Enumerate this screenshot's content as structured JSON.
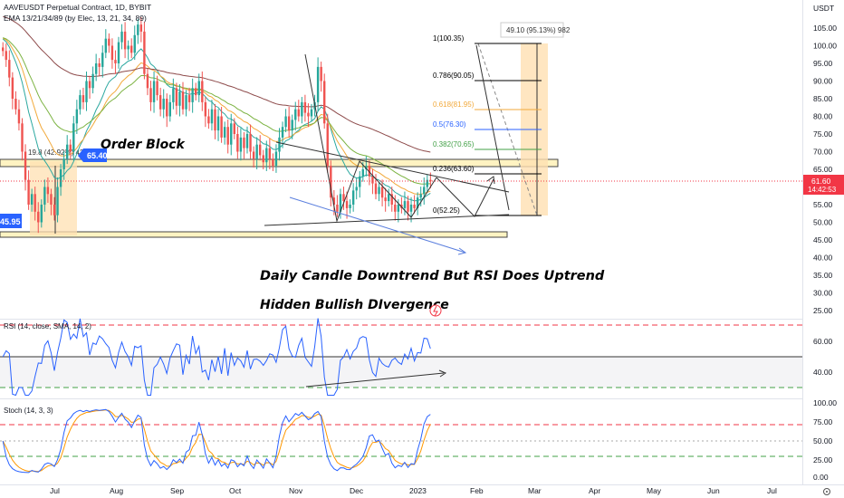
{
  "header": {
    "symbol_line": "AAVEUSDT Perpetual Contract, 1D, BYBIT",
    "ema_line": "EMA 13/21/34/89 (by Elec, 13, 21, 34, 89)"
  },
  "price_axis": {
    "unit": "USDT",
    "ticks": [
      "105.00",
      "100.00",
      "95.00",
      "90.00",
      "85.00",
      "80.00",
      "75.00",
      "70.00",
      "65.00",
      "60.00",
      "55.00",
      "50.00",
      "45.00",
      "40.00",
      "35.00",
      "30.00",
      "25.00"
    ],
    "current_price": "61.60",
    "countdown": "14:42:53"
  },
  "rsi_panel": {
    "label": "RSI (14, close, SMA, 14, 2)",
    "ticks": [
      "60.00",
      "40.00"
    ]
  },
  "stoch_panel": {
    "label": "Stoch (14, 3, 3)",
    "ticks": [
      "100.00",
      "75.00",
      "50.00",
      "25.00",
      "0.00"
    ]
  },
  "time_axis": {
    "labels": [
      "Jul",
      "Aug",
      "Sep",
      "Oct",
      "Nov",
      "Dec",
      "2023",
      "Feb",
      "Mar",
      "Apr",
      "May",
      "Jun",
      "Jul"
    ]
  },
  "annotations": {
    "order_block": "Order Block",
    "headline": "Daily Candle Downtrend But RSI Does Uptrend",
    "subhead": "Hidden Bullish DIvergence",
    "badge_high": "65.40",
    "badge_low": "45.95",
    "range_label": "19.8 (42.92%) 427",
    "measure_label": "49.10 (95.13%) 982"
  },
  "fib_levels": [
    {
      "label": "1(100.35)",
      "color": "#000000"
    },
    {
      "label": "0.786(90.05)",
      "color": "#000000"
    },
    {
      "label": "0.618(81.95)",
      "color": "#f2a93b"
    },
    {
      "label": "0.5(76.30)",
      "color": "#2962ff"
    },
    {
      "label": "0.382(70.65)",
      "color": "#43a047"
    },
    {
      "label": "0.236(63.60)",
      "color": "#000000"
    },
    {
      "label": "0(52.25)",
      "color": "#000000"
    }
  ],
  "chart_data": {
    "type": "candlestick",
    "ylim": [
      22,
      110
    ],
    "current_price": 61.6,
    "closes": [
      98.5,
      96,
      91,
      85,
      82,
      78,
      70,
      62,
      55,
      58,
      53,
      50,
      55,
      60,
      58,
      55,
      52,
      60,
      65,
      68,
      72,
      70,
      78,
      82,
      86,
      84,
      90,
      88,
      92,
      95,
      94,
      98,
      102,
      100,
      96,
      95,
      101,
      104,
      99,
      100,
      98,
      103,
      106,
      104,
      92,
      88,
      84,
      90,
      86,
      82,
      85,
      80,
      84,
      88,
      83,
      87,
      82,
      86,
      84,
      88,
      86,
      90,
      84,
      80,
      78,
      82,
      76,
      80,
      74,
      77,
      72,
      78,
      75,
      70,
      74,
      71,
      75,
      70,
      68,
      72,
      69,
      67,
      71,
      68,
      66,
      70,
      74,
      77,
      80,
      76,
      79,
      82,
      80,
      84,
      81,
      80,
      82,
      84,
      94,
      90,
      78,
      66,
      57,
      55,
      53,
      58,
      56,
      54,
      55,
      59,
      60,
      63,
      65,
      66,
      63,
      61,
      58,
      60,
      57,
      56,
      58,
      55,
      53,
      55,
      54,
      56,
      53,
      55,
      54,
      57,
      58,
      60,
      62,
      61.6
    ]
  }
}
